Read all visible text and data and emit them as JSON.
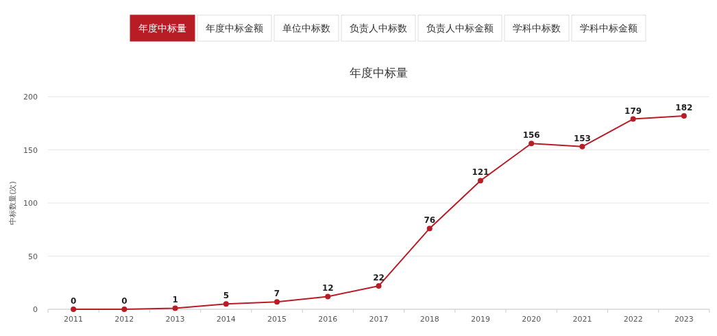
{
  "chart_data": {
    "type": "line",
    "title": "年度中标量",
    "ylabel": "中标数量(次)",
    "annotations": [
      "年度中标量",
      "年度中标金额",
      "单位中标数",
      "负责人中标数",
      "负责人中标金额",
      "学科中标数",
      "学科中标金额"
    ],
    "categories": [
      "2011",
      "2012",
      "2013",
      "2014",
      "2015",
      "2016",
      "2017",
      "2018",
      "2019",
      "2020",
      "2021",
      "2022",
      "2023"
    ],
    "series": [
      {
        "color": "#b81c25",
        "values": [
          0,
          0,
          1,
          5,
          7,
          12,
          22,
          76,
          121,
          156,
          153,
          179,
          182
        ]
      }
    ],
    "ylim": [
      0,
      200
    ],
    "yticks": [
      0,
      50,
      100,
      150,
      200
    ],
    "grid": "y",
    "marker": "circle",
    "data_labels": true
  }
}
